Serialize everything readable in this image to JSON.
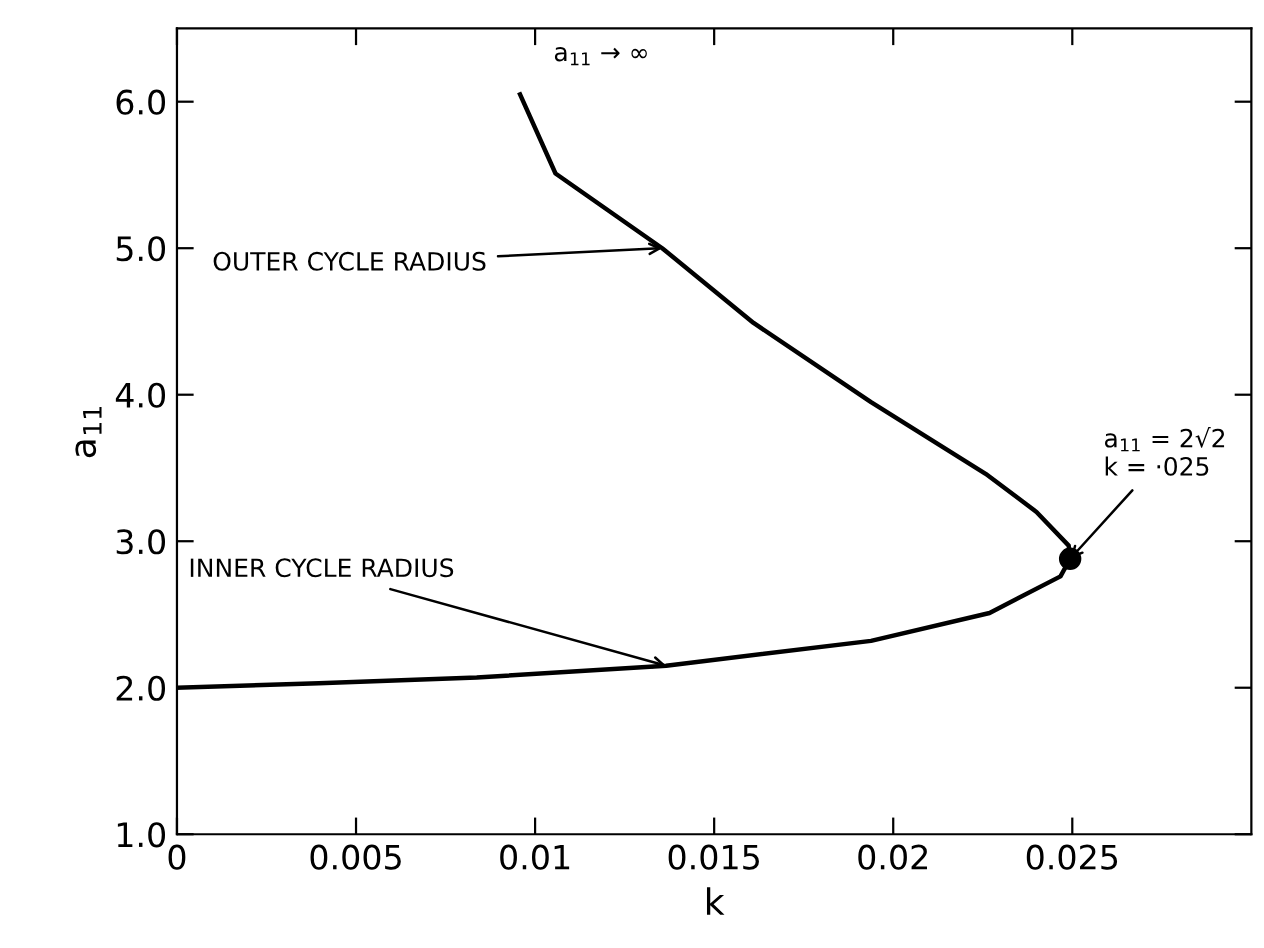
{
  "chart_data": {
    "type": "line",
    "xlabel": "k",
    "ylabel": "a$_{11}$",
    "series": [
      {
        "color": "#000000",
        "x": [
          0,
          0.00396,
          0.00837,
          0.01366,
          0.01938,
          0.02269,
          0.02467,
          0.02494,
          0.0249,
          0.024,
          0.02258,
          0.01938,
          0.0161,
          0.01355,
          0.01057,
          0.00958
        ],
        "values": [
          2.0,
          2.03,
          2.07,
          2.15,
          2.32,
          2.51,
          2.76,
          2.88,
          2.97,
          3.2,
          3.46,
          3.95,
          4.49,
          5.0,
          5.51,
          6.05
        ]
      },
      {
        "type": "scatter",
        "color": "#000000",
        "marker": "circle",
        "x": [
          0.02494
        ],
        "values": [
          2.88
        ]
      }
    ],
    "annotations": [
      {
        "text": "a$_{11}$ → ∞",
        "x": 0.00958,
        "y": 6.05
      },
      {
        "text": "OUTER CYCLE RADIUS",
        "x": 0.01355,
        "y": 5.0
      },
      {
        "text": "a$_{11}$ = 2√2\nk = ·025",
        "x": 0.02494,
        "y": 2.88
      },
      {
        "text": "INNER CYCLE RADIUS",
        "x": 0.01366,
        "y": 2.15
      }
    ],
    "xlim": [
      0,
      0.03
    ],
    "ylim": [
      1.0,
      6.5
    ],
    "xticks": [
      0,
      0.005,
      0.01,
      0.015,
      0.02,
      0.025
    ],
    "yticks": [
      {
        "value": 1.0,
        "label": "1.0"
      },
      {
        "value": 2.0,
        "label": "2.0"
      },
      {
        "value": 3.0,
        "label": "3.0"
      },
      {
        "value": 4.0,
        "label": "4.0"
      },
      {
        "value": 5.0,
        "label": "5.0"
      },
      {
        "value": 6.0,
        "label": "6.0"
      }
    ],
    "grid": false,
    "legend": false,
    "line_style": "solid"
  }
}
